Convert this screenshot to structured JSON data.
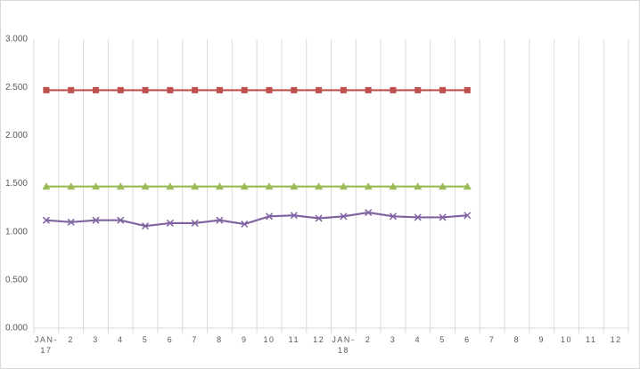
{
  "chart_data": {
    "type": "line",
    "categories": [
      "JAN-17",
      "2",
      "3",
      "4",
      "5",
      "6",
      "7",
      "8",
      "9",
      "10",
      "11",
      "12",
      "JAN-18",
      "2",
      "3",
      "4",
      "5",
      "6",
      "7",
      "8",
      "9",
      "10",
      "11",
      "12"
    ],
    "series": [
      {
        "color": "#c0504d",
        "marker": "square",
        "values": [
          2.47,
          2.47,
          2.47,
          2.47,
          2.47,
          2.47,
          2.47,
          2.47,
          2.47,
          2.47,
          2.47,
          2.47,
          2.47,
          2.47,
          2.47,
          2.47,
          2.47,
          2.47,
          null,
          null,
          null,
          null,
          null,
          null
        ]
      },
      {
        "color": "#9bbb59",
        "marker": "triangle",
        "values": [
          1.47,
          1.47,
          1.47,
          1.47,
          1.47,
          1.47,
          1.47,
          1.47,
          1.47,
          1.47,
          1.47,
          1.47,
          1.47,
          1.47,
          1.47,
          1.47,
          1.47,
          1.47,
          null,
          null,
          null,
          null,
          null,
          null
        ]
      },
      {
        "color": "#8064a2",
        "marker": "x",
        "values": [
          1.12,
          1.1,
          1.12,
          1.12,
          1.06,
          1.09,
          1.09,
          1.12,
          1.08,
          1.16,
          1.17,
          1.14,
          1.16,
          1.2,
          1.16,
          1.15,
          1.15,
          1.17,
          null,
          null,
          null,
          null,
          null,
          null
        ]
      }
    ],
    "ylim": [
      0,
      3
    ],
    "yticks": [
      {
        "value": 0,
        "label": "0.000"
      },
      {
        "value": 0.5,
        "label": "0.500"
      },
      {
        "value": 1,
        "label": "1.000"
      },
      {
        "value": 1.5,
        "label": "1.500"
      },
      {
        "value": 2,
        "label": "2.000"
      },
      {
        "value": 2.5,
        "label": "2.500"
      },
      {
        "value": 3,
        "label": "3.000"
      }
    ],
    "category_grid": true
  }
}
